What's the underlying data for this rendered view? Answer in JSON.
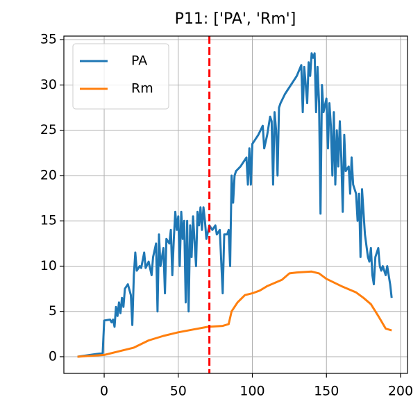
{
  "chart_data": {
    "type": "line",
    "title": "P11: ['PA', 'Rm']",
    "xlim": [
      -27.2,
      204.7
    ],
    "ylim": [
      -1.84,
      35.4
    ],
    "xticks": [
      0,
      50,
      100,
      150,
      200
    ],
    "yticks": [
      0,
      5,
      10,
      15,
      20,
      25,
      30,
      35
    ],
    "grid": true,
    "legend": "upper-left",
    "vline": {
      "x": 71,
      "color": "#ff0000"
    },
    "series": [
      {
        "name": "PA",
        "color": "#1f77b4",
        "x": [
          -18,
          -1,
          0,
          4,
          5,
          6,
          7,
          8,
          9,
          10,
          11,
          12,
          13,
          14,
          16,
          18,
          19,
          20,
          21,
          22,
          24,
          25,
          27,
          28,
          30,
          32,
          33,
          35,
          36,
          37,
          38,
          40,
          41,
          42,
          44,
          45,
          46,
          47,
          48,
          49,
          50,
          51,
          52,
          53,
          54,
          55,
          56,
          57,
          58,
          59,
          60,
          62,
          63,
          64,
          65,
          66,
          67,
          68,
          69,
          71,
          73,
          75,
          76,
          78,
          80,
          81,
          83,
          84,
          85,
          86,
          87,
          88,
          89,
          92,
          94,
          96,
          97,
          98,
          99,
          100,
          104,
          107,
          108,
          110,
          112,
          113,
          114,
          115,
          116,
          117,
          118,
          119,
          122,
          124,
          126,
          128,
          130,
          133,
          134,
          135,
          136,
          137,
          138,
          139,
          140,
          141,
          142,
          143,
          144,
          145,
          146,
          147,
          148,
          150,
          151,
          152,
          153,
          154,
          155,
          156,
          157,
          158,
          159,
          160,
          161,
          162,
          163,
          165,
          166,
          167,
          168,
          170,
          171,
          172,
          173,
          174,
          176,
          178,
          179,
          180,
          181,
          182,
          183,
          185,
          186,
          187,
          188,
          190,
          191,
          193,
          194
        ],
        "values": [
          0,
          0.4,
          4,
          4.1,
          3.8,
          4.1,
          3.3,
          5.5,
          4.5,
          6,
          4.8,
          6.5,
          5.5,
          7.5,
          8,
          6.8,
          3.5,
          9,
          11.5,
          9.5,
          10,
          9.8,
          11.5,
          9.8,
          10.5,
          9,
          11,
          12.5,
          5,
          13.5,
          10,
          12,
          7,
          13,
          12.5,
          14,
          9,
          13,
          16,
          14,
          15.5,
          10,
          16,
          13,
          15,
          6,
          15,
          5,
          14.5,
          11,
          15.5,
          10,
          16,
          14.5,
          16.5,
          14,
          16.5,
          15,
          13,
          14.5,
          14,
          14.5,
          13.5,
          14,
          7,
          13.5,
          13.5,
          14,
          10,
          20,
          17,
          20,
          20.5,
          21,
          21.5,
          22,
          19,
          23,
          19,
          23.5,
          24.5,
          25.5,
          23,
          24.5,
          26.5,
          26,
          19,
          27,
          25,
          20,
          27.5,
          28,
          29,
          29.5,
          30,
          30.5,
          31,
          32.2,
          27,
          32,
          30,
          28,
          32.5,
          31,
          33.5,
          33,
          33.5,
          27,
          32,
          28,
          15.8,
          30,
          27,
          28.5,
          23,
          28,
          25.5,
          20,
          27,
          19,
          25,
          21,
          26,
          22,
          16,
          24.5,
          20.5,
          21,
          18,
          22,
          19,
          18,
          15,
          18,
          11,
          18.5,
          13.5,
          11,
          10.5,
          12,
          9,
          8,
          11,
          12,
          10,
          9.5,
          10,
          9,
          10,
          8,
          6.5
        ]
      },
      {
        "name": "Rm",
        "color": "#ff7f0e",
        "x": [
          -18,
          0,
          10,
          20,
          30,
          40,
          50,
          60,
          70,
          80,
          84,
          86,
          90,
          95,
          100,
          105,
          110,
          120,
          125,
          130,
          140,
          145,
          150,
          160,
          170,
          175,
          180,
          185,
          190,
          194
        ],
        "values": [
          0,
          0.2,
          0.6,
          1,
          1.8,
          2.3,
          2.7,
          3,
          3.3,
          3.4,
          3.6,
          5,
          6,
          6.8,
          7,
          7.3,
          7.8,
          8.5,
          9.2,
          9.3,
          9.4,
          9.2,
          8.6,
          7.8,
          7.1,
          6.5,
          5.8,
          4.5,
          3.1,
          2.9
        ]
      }
    ]
  }
}
